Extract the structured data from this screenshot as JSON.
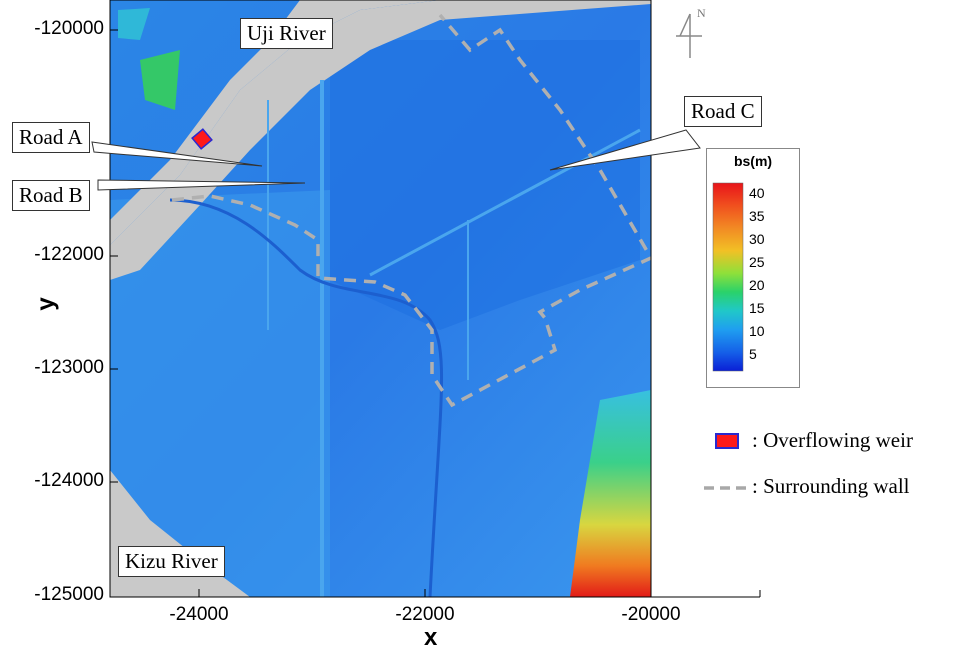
{
  "map": {
    "rivers": {
      "uji": "Uji River",
      "kizu": "Kizu River"
    },
    "roads": {
      "a": "Road A",
      "b": "Road B",
      "c": "Road C"
    },
    "north_label": "N",
    "x_axis": {
      "label": "x",
      "ticks": [
        "-24000",
        "-22000",
        "-20000"
      ]
    },
    "y_axis": {
      "label": "y",
      "ticks": [
        "-120000",
        "-122000",
        "-123000",
        "-124000",
        "-125000"
      ]
    },
    "legend": {
      "title": "bs(m)",
      "ticks": [
        "40",
        "35",
        "30",
        "25",
        "20",
        "15",
        "10",
        "5"
      ],
      "colors": [
        "#e8141a",
        "#f0501e",
        "#f28a24",
        "#f2c025",
        "#8fe03a",
        "#2ad26a",
        "#20c8c8",
        "#1f9ef0",
        "#1560e8",
        "#0a1fd6"
      ]
    },
    "key": {
      "weir_label": ": Overflowing weir",
      "wall_label": ": Surrounding wall",
      "weir_color": "#ff1a1a",
      "wall_color": "#a8a8a8"
    }
  }
}
